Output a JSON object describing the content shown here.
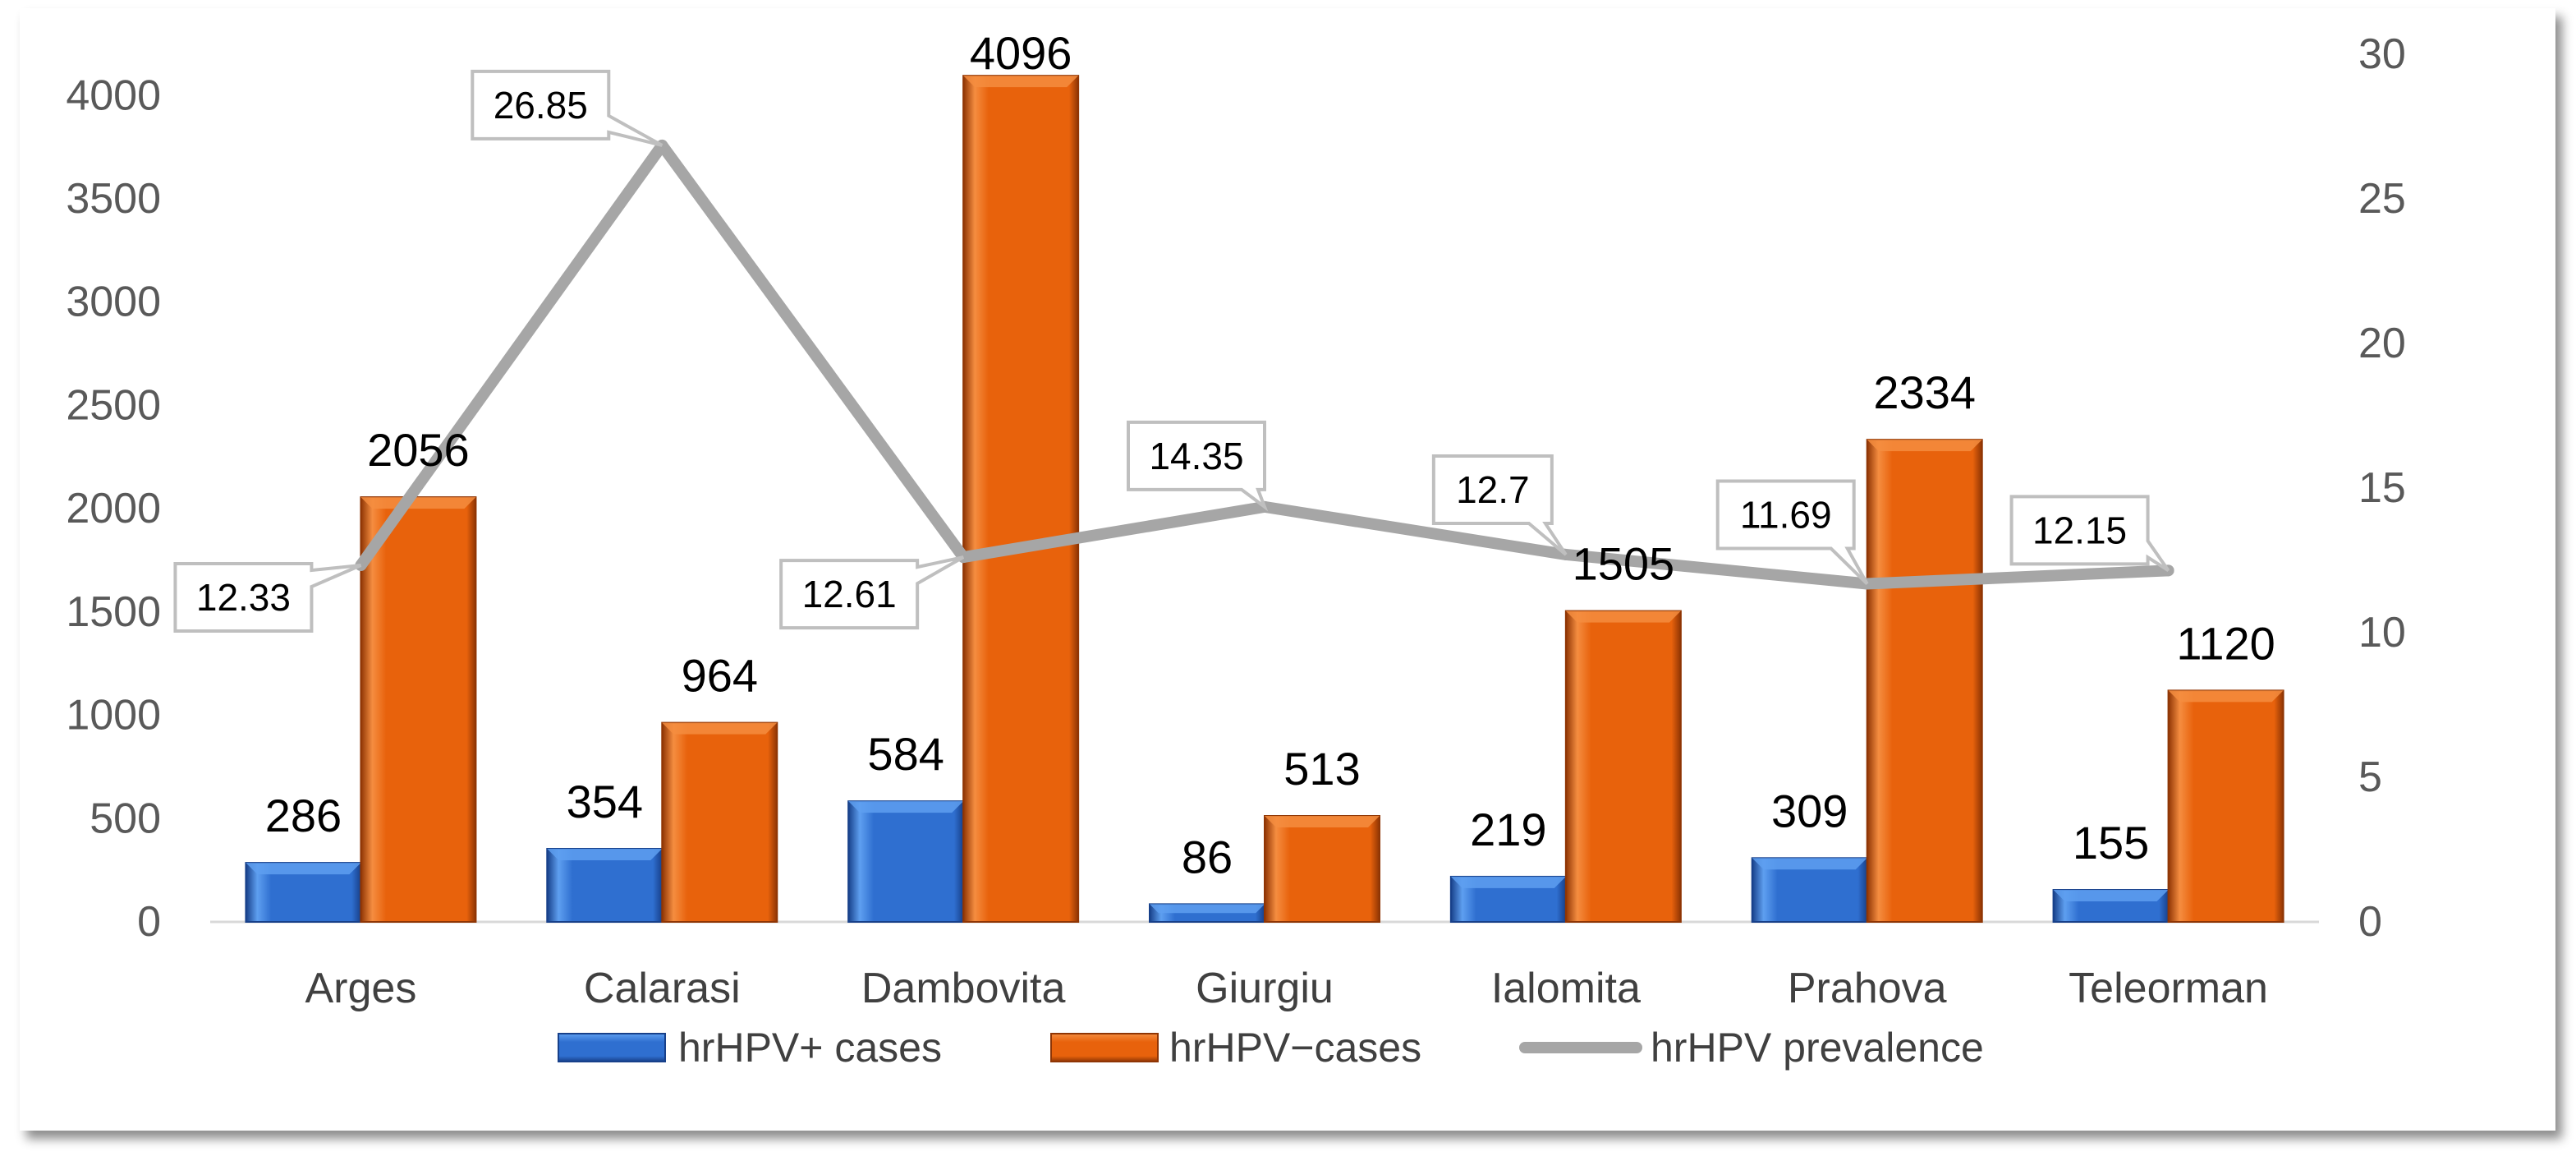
{
  "chart_data": {
    "type": "bar",
    "categories": [
      "Arges",
      "Calarasi",
      "Dambovita",
      "Giurgiu",
      "Ialomita",
      "Prahova",
      "Teleorman"
    ],
    "series": [
      {
        "name": "hrHPV+ cases",
        "type": "bar",
        "values": [
          286,
          354,
          584,
          86,
          219,
          309,
          155
        ],
        "color": "#2f6fd0",
        "color_light": "#5e9ff0",
        "color_dark": "#17408a"
      },
      {
        "name": "hrHPV−cases",
        "type": "bar",
        "values": [
          2056,
          964,
          4096,
          513,
          1505,
          2334,
          1120
        ],
        "color": "#e8620c",
        "color_light": "#f58d40",
        "color_dark": "#8f3504"
      },
      {
        "name": "hrHPV prevalence",
        "type": "line",
        "secondary_axis": true,
        "values": [
          12.33,
          26.85,
          12.61,
          14.35,
          12.7,
          11.69,
          12.15
        ],
        "color": "#a6a6a6"
      }
    ],
    "ylim_left": [
      0,
      4200
    ],
    "yticks_left": [
      0,
      500,
      1000,
      1500,
      2000,
      2500,
      3000,
      3500,
      4000
    ],
    "ylim_right": [
      0,
      30
    ],
    "yticks_right": [
      0,
      5,
      10,
      15,
      20,
      25,
      30
    ],
    "grid": false,
    "legend": "bottom"
  }
}
